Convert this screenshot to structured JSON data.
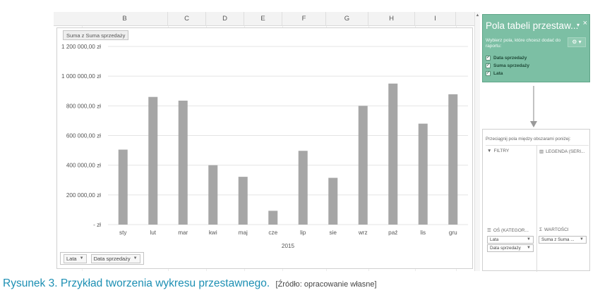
{
  "sheet": {
    "columns": [
      {
        "letter": "B"
      },
      {
        "letter": "C"
      },
      {
        "letter": "D"
      },
      {
        "letter": "E"
      },
      {
        "letter": "F"
      },
      {
        "letter": "G"
      },
      {
        "letter": "H"
      },
      {
        "letter": "I"
      }
    ]
  },
  "chart": {
    "value_field_button": "Suma z Suma sprzedaży",
    "axis_buttons": [
      {
        "label": "Lata"
      },
      {
        "label": "Data sprzedaży"
      }
    ]
  },
  "chart_data": {
    "type": "bar",
    "categories": [
      "sty",
      "lut",
      "mar",
      "kwi",
      "maj",
      "cze",
      "lip",
      "sie",
      "wrz",
      "paź",
      "lis",
      "gru"
    ],
    "values": [
      505000,
      860000,
      835000,
      400000,
      322000,
      93000,
      497000,
      315000,
      800000,
      950000,
      680000,
      878000
    ],
    "group_label": "2015",
    "ylim": [
      0,
      1200000
    ],
    "y_ticks": [
      {
        "value": 0,
        "label": "- zł"
      },
      {
        "value": 200000,
        "label": "200 000,00 zł"
      },
      {
        "value": 400000,
        "label": "400 000,00 zł"
      },
      {
        "value": 600000,
        "label": "600 000,00 zł"
      },
      {
        "value": 800000,
        "label": "800 000,00 zł"
      },
      {
        "value": 1000000,
        "label": "1 000 000,00 zł"
      },
      {
        "value": 1200000,
        "label": "1 200 000,00 zł"
      }
    ],
    "bar_color": "#a6a6a6",
    "grid": true
  },
  "field_list": {
    "title": "Pola tabeli przestaw...",
    "caret": "▾",
    "close": "×",
    "instruction": "Wybierz pola, które chcesz dodać do raportu:",
    "gear": "⚙ ▾",
    "fields": [
      {
        "label": "Data sprzedaży",
        "checked": true
      },
      {
        "label": "Suma sprzedaży",
        "checked": true
      },
      {
        "label": "Lata",
        "checked": true
      }
    ],
    "accent_color": "#7cbfa4"
  },
  "areas": {
    "hint": "Przeciągnij pola między obszarami poniżej:",
    "filters_label": "FILTRY",
    "legend_label": "LEGENDA (SERI...",
    "axis_label": "OŚ (KATEGOR...",
    "values_label": "WARTOŚCI",
    "axis_items": [
      {
        "label": "Lata"
      },
      {
        "label": "Data sprzedaży"
      }
    ],
    "value_items": [
      {
        "label": "Suma z Suma ..."
      }
    ]
  },
  "caption": {
    "title": "Rysunek 3. Przykład tworzenia wykresu przestawnego.",
    "source": "[Źródło: opracowanie własne]"
  }
}
